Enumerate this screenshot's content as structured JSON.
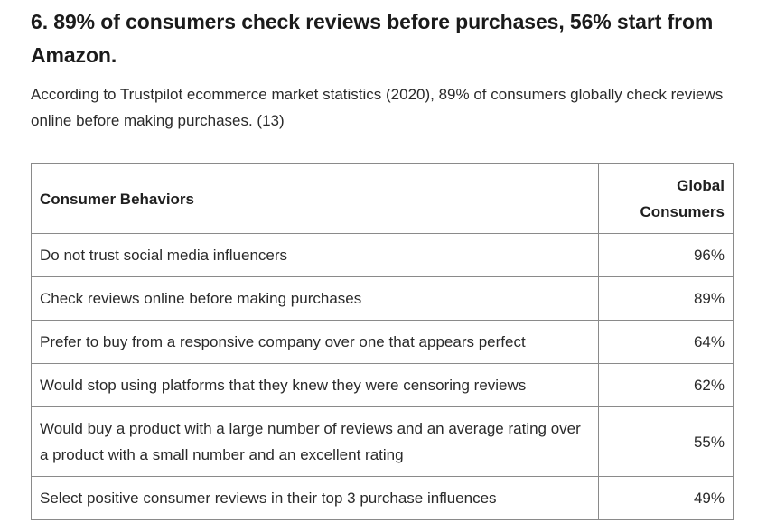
{
  "heading": "6. 89% of consumers check reviews before purchases, 56% start from Amazon.",
  "intro": "According to Trustpilot ecommerce market statistics (2020), 89% of consumers globally check reviews online before making purchases. (13)",
  "table": {
    "headers": [
      "Consumer Behaviors",
      "Global Consumers"
    ],
    "rows": [
      {
        "behavior": "Do not trust social media influencers",
        "value": "96%"
      },
      {
        "behavior": "Check reviews online before making purchases",
        "value": "89%"
      },
      {
        "behavior": "Prefer to buy from a responsive company over one that appears perfect",
        "value": "64%"
      },
      {
        "behavior": "Would stop using platforms that they knew they were censoring reviews",
        "value": "62%"
      },
      {
        "behavior": "Would buy a product with a large number of reviews and an average rating over a product with a small number and an excellent rating",
        "value": "55%"
      },
      {
        "behavior": "Select positive consumer reviews in their top 3 purchase influences",
        "value": "49%"
      }
    ]
  }
}
